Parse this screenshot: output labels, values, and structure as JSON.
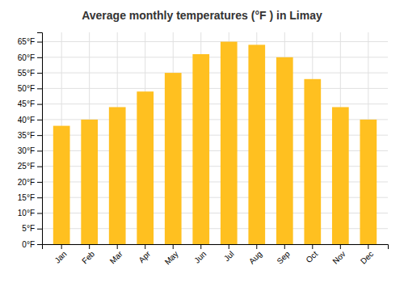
{
  "chart_data": {
    "type": "bar",
    "title": "Average monthly temperatures (°F ) in Limay",
    "categories": [
      "Jan",
      "Feb",
      "Mar",
      "Apr",
      "May",
      "Jun",
      "Jul",
      "Aug",
      "Sep",
      "Oct",
      "Nov",
      "Dec"
    ],
    "values": [
      38,
      40,
      44,
      49,
      55,
      61,
      65,
      64,
      60,
      53,
      44,
      40
    ],
    "color": "#FFC020",
    "ylim": [
      0,
      68
    ],
    "yticks": [
      {
        "value": 0,
        "label": "0°F"
      },
      {
        "value": 5,
        "label": "5°F"
      },
      {
        "value": 10,
        "label": "10°F"
      },
      {
        "value": 15,
        "label": "15°F"
      },
      {
        "value": 20,
        "label": "20°F"
      },
      {
        "value": 25,
        "label": "25°F"
      },
      {
        "value": 30,
        "label": "30°F"
      },
      {
        "value": 35,
        "label": "35°F"
      },
      {
        "value": 40,
        "label": "40°F"
      },
      {
        "value": 45,
        "label": "45°F"
      },
      {
        "value": 50,
        "label": "50°F"
      },
      {
        "value": 55,
        "label": "55°F"
      },
      {
        "value": 60,
        "label": "60°F"
      },
      {
        "value": 65,
        "label": "65°F"
      }
    ],
    "grid": true
  }
}
